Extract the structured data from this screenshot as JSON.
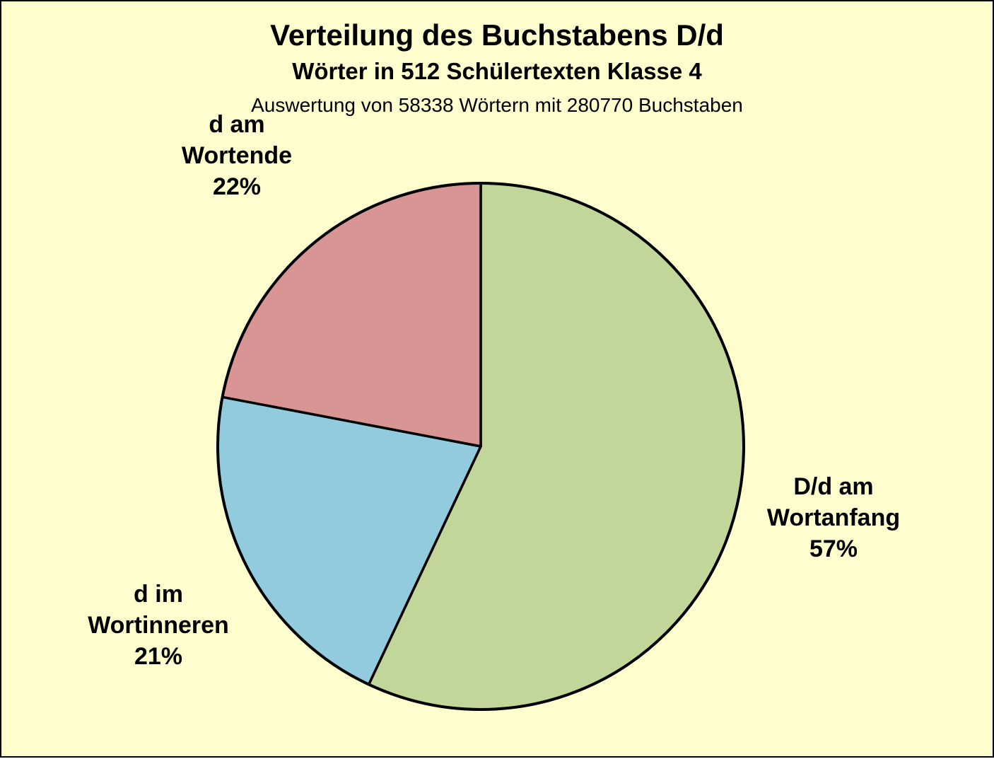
{
  "header": {
    "title": "Verteilung des Buchstabens D/d",
    "subtitle": "Wörter in 512 Schülertexten Klasse 4",
    "note": "Auswertung von 58338 Wörtern mit 280770 Buchstaben"
  },
  "chart_data": {
    "type": "pie",
    "title": "Verteilung des Buchstabens D/d",
    "subtitle": "Wörter in 512 Schülertexten Klasse 4",
    "note": "Auswertung von 58338 Wörtern mit 280770 Buchstaben",
    "unit": "%",
    "start_angle_deg": 0,
    "direction": "clockwise",
    "legend": "none (direct labels outside slices)",
    "background": "#fdfdcd",
    "stroke_color": "#000000",
    "slices": [
      {
        "id": "wortanfang",
        "label": "D/d am Wortanfang",
        "value": 57,
        "color": "#c2d69a",
        "display": "D/d am\nWortanfang\n57%"
      },
      {
        "id": "wortinneren",
        "label": "d im Wortinneren",
        "value": 21,
        "color": "#92cbde",
        "display": "d im\nWortinneren\n21%"
      },
      {
        "id": "wortende",
        "label": "d am Wortende",
        "value": 22,
        "color": "#d99494",
        "display": "d am\nWortende\n22%"
      }
    ]
  }
}
